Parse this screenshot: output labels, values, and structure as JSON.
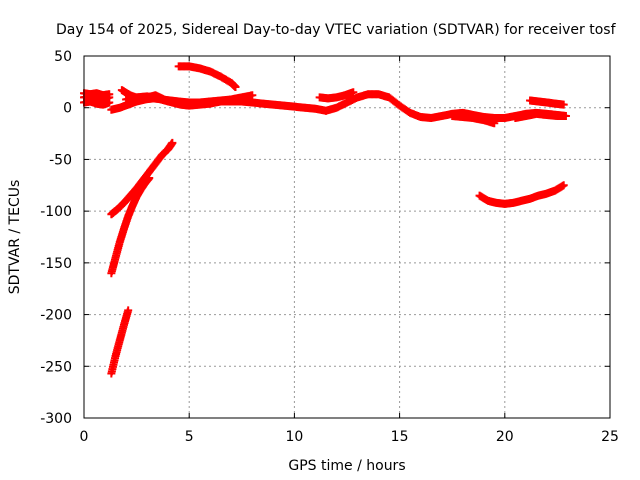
{
  "chart_data": {
    "type": "scatter",
    "title": "Day 154 of 2025, Sidereal Day-to-day VTEC variation (SDTVAR) for receiver tosf",
    "xlabel": "GPS time / hours",
    "ylabel": "SDTVAR / TECUs",
    "xlim": [
      0,
      25
    ],
    "ylim": [
      -300,
      50
    ],
    "xticks": [
      0,
      5,
      10,
      15,
      20,
      25
    ],
    "yticks": [
      50,
      0,
      -50,
      -100,
      -150,
      -200,
      -250,
      -300
    ],
    "grid": true,
    "marker": "plus",
    "color": "#ff0000",
    "segments": [
      {
        "x": [
          0.0,
          0.3,
          0.6,
          0.9,
          1.2
        ],
        "y": [
          10,
          11,
          9,
          8,
          10
        ]
      },
      {
        "x": [
          0.0,
          0.3,
          0.6,
          0.9,
          1.2
        ],
        "y": [
          5,
          6,
          4,
          3,
          5
        ]
      },
      {
        "x": [
          0.0,
          0.3,
          0.6,
          0.9,
          1.2
        ],
        "y": [
          14,
          13,
          14,
          12,
          13
        ]
      },
      {
        "x": [
          1.3,
          1.7,
          2.1,
          2.5,
          2.9,
          3.3,
          3.7,
          4.1,
          4.5,
          5.0,
          5.5,
          6.0,
          6.5,
          7.0,
          7.5,
          8.0,
          8.5,
          9.0,
          9.5,
          10.0,
          10.5,
          11.0,
          11.5,
          12.0,
          12.5,
          13.0,
          13.5,
          14.0,
          14.5,
          15.0,
          15.5,
          16.0,
          16.5,
          17.0,
          17.5,
          18.0,
          18.5,
          19.0,
          19.5,
          20.0,
          20.5,
          21.0,
          21.5,
          22.0,
          22.5,
          22.9
        ],
        "y": [
          -2,
          0,
          3,
          6,
          8,
          9,
          8,
          7,
          6,
          5,
          5,
          6,
          6,
          6,
          6,
          5,
          4,
          3,
          2,
          1,
          0,
          -1,
          -3,
          0,
          5,
          10,
          13,
          13,
          10,
          2,
          -5,
          -9,
          -10,
          -8,
          -6,
          -5,
          -7,
          -9,
          -10,
          -10,
          -8,
          -6,
          -5,
          -6,
          -7,
          -8
        ]
      },
      {
        "x": [
          1.8,
          2.2,
          2.6,
          3.0,
          3.4,
          3.8,
          4.2,
          4.6,
          5.0,
          5.5,
          6.0,
          6.5,
          7.0,
          7.5,
          8.0
        ],
        "y": [
          17,
          12,
          9,
          10,
          12,
          8,
          5,
          3,
          2,
          3,
          4,
          6,
          8,
          10,
          12
        ]
      },
      {
        "x": [
          2.0,
          2.5,
          3.0,
          3.5,
          4.0,
          4.5,
          5.0,
          5.5,
          6.0,
          6.5,
          7.0
        ],
        "y": [
          8,
          10,
          11,
          9,
          6,
          4,
          3,
          4,
          6,
          7,
          8
        ]
      },
      {
        "x": [
          4.5,
          5.0,
          5.5,
          6.0,
          6.5,
          7.0,
          7.2
        ],
        "y": [
          40,
          40,
          38,
          35,
          30,
          24,
          20
        ]
      },
      {
        "x": [
          11.2,
          11.6,
          12.0,
          12.4,
          12.8
        ],
        "y": [
          10,
          9,
          10,
          12,
          15
        ]
      },
      {
        "x": [
          17.5,
          18.0,
          18.5,
          19.0,
          19.5
        ],
        "y": [
          -8,
          -9,
          -10,
          -12,
          -15
        ]
      },
      {
        "x": [
          21.2,
          21.6,
          22.0,
          22.4,
          22.8
        ],
        "y": [
          7,
          6,
          5,
          4,
          3
        ]
      },
      {
        "x": [
          20.5,
          21.0,
          21.5,
          22.0,
          22.5,
          22.9
        ],
        "y": [
          -10,
          -8,
          -6,
          -7,
          -8,
          -8
        ]
      },
      {
        "x": [
          1.3,
          1.6,
          1.9,
          2.2,
          2.5,
          2.8,
          3.1,
          3.4,
          3.7,
          4.0,
          4.2
        ],
        "y": [
          -103,
          -98,
          -92,
          -85,
          -78,
          -70,
          -62,
          -54,
          -46,
          -40,
          -34
        ]
      },
      {
        "x": [
          1.3,
          1.5,
          1.7,
          1.9,
          2.1,
          2.3,
          2.5,
          2.7,
          2.9,
          3.1
        ],
        "y": [
          -160,
          -145,
          -130,
          -117,
          -105,
          -95,
          -86,
          -79,
          -73,
          -68
        ]
      },
      {
        "x": [
          1.3,
          1.5,
          1.7,
          1.9,
          2.1
        ],
        "y": [
          -257,
          -240,
          -225,
          -210,
          -196
        ]
      },
      {
        "x": [
          18.8,
          19.2,
          19.6,
          20.0,
          20.4,
          20.8,
          21.2,
          21.6,
          22.0,
          22.4,
          22.8
        ],
        "y": [
          -85,
          -90,
          -92,
          -93,
          -92,
          -90,
          -88,
          -85,
          -83,
          -80,
          -75
        ]
      }
    ]
  }
}
